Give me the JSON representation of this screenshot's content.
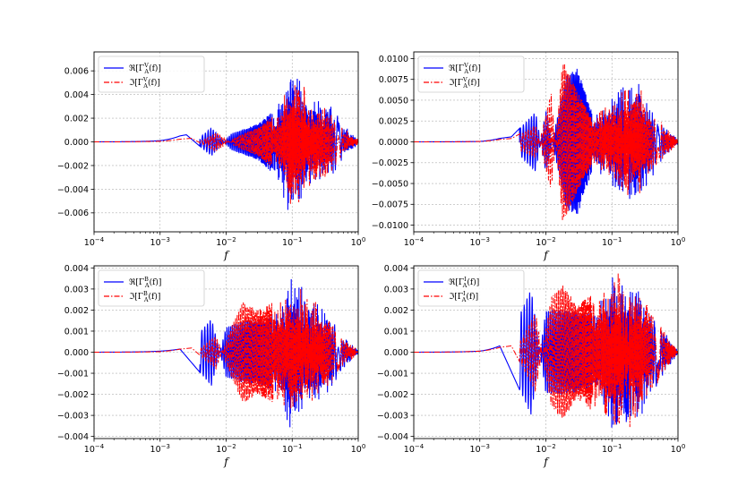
{
  "chart_data": [
    {
      "type": "line",
      "xscale": "log",
      "xlim": [
        0.0001,
        1
      ],
      "ylim": [
        -0.0076,
        0.0076
      ],
      "xlabel": "f",
      "xticks": [
        {
          "v": 0.0001,
          "b": "10",
          "e": "−4"
        },
        {
          "v": 0.001,
          "b": "10",
          "e": "−3"
        },
        {
          "v": 0.01,
          "b": "10",
          "e": "−2"
        },
        {
          "v": 0.1,
          "b": "10",
          "e": "−1"
        },
        {
          "v": 1,
          "b": "10",
          "e": "0"
        }
      ],
      "yticks": [
        -0.006,
        -0.004,
        -0.002,
        0.0,
        0.002,
        0.004,
        0.006
      ],
      "yticklabels": [
        "−0.006",
        "−0.004",
        "−0.002",
        "0.000",
        "0.002",
        "0.004",
        "0.006"
      ],
      "grid": true,
      "legend": "top-left",
      "series": [
        {
          "name": "ℜ[Γ_A^V(f)]",
          "label_main": "ℜ[Γ",
          "label_sup": "V",
          "label_sub": "A",
          "label_tail": "(f)]",
          "color": "#0000ff",
          "style": "solid",
          "envelope": [
            [
              0.0001,
              0
            ],
            [
              0.001,
              0.0002
            ],
            [
              0.0025,
              0.0006
            ],
            [
              0.006,
              -0.0012
            ],
            [
              0.012,
              0.0007
            ],
            [
              0.03,
              0.0015
            ],
            [
              0.06,
              0.003
            ],
            [
              0.09,
              0.0068
            ],
            [
              0.13,
              0.0055
            ],
            [
              0.2,
              0.004
            ],
            [
              0.35,
              0.0035
            ],
            [
              0.6,
              0.0015
            ],
            [
              1,
              0.0002
            ]
          ]
        },
        {
          "name": "ℑ[Γ_A^V(f)]",
          "label_main": "ℑ[Γ",
          "label_sup": "V",
          "label_sub": "A",
          "label_tail": "(f)]",
          "color": "#ff0000",
          "style": "dashdot",
          "envelope": [
            [
              0.0001,
              0
            ],
            [
              0.001,
              0.0001
            ],
            [
              0.003,
              0.0003
            ],
            [
              0.007,
              -0.0008
            ],
            [
              0.015,
              0.0005
            ],
            [
              0.03,
              0.0012
            ],
            [
              0.06,
              0.0025
            ],
            [
              0.1,
              0.006
            ],
            [
              0.14,
              0.005
            ],
            [
              0.2,
              0.004
            ],
            [
              0.35,
              0.003
            ],
            [
              0.6,
              0.0012
            ],
            [
              1,
              0.0002
            ]
          ]
        }
      ]
    },
    {
      "type": "line",
      "xscale": "log",
      "xlim": [
        0.0001,
        1
      ],
      "ylim": [
        -0.0108,
        0.0108
      ],
      "xlabel": "f",
      "xticks": [
        {
          "v": 0.0001,
          "b": "10",
          "e": "−4"
        },
        {
          "v": 0.001,
          "b": "10",
          "e": "−3"
        },
        {
          "v": 0.01,
          "b": "10",
          "e": "−2"
        },
        {
          "v": 0.1,
          "b": "10",
          "e": "−1"
        },
        {
          "v": 1,
          "b": "10",
          "e": "0"
        }
      ],
      "yticks": [
        -0.01,
        -0.0075,
        -0.005,
        -0.0025,
        0.0,
        0.0025,
        0.005,
        0.0075,
        0.01
      ],
      "yticklabels": [
        "−0.0100",
        "−0.0075",
        "−0.0050",
        "−0.0025",
        "0.0000",
        "0.0025",
        "0.0050",
        "0.0075",
        "0.0100"
      ],
      "grid": true,
      "legend": "top-left",
      "series": [
        {
          "name": "ℜ[Γ_A^V(f)]",
          "label_main": "ℜ[Γ",
          "label_sup": "V",
          "label_sub": "A",
          "label_tail": "(f)]",
          "color": "#0000ff",
          "style": "solid",
          "envelope": [
            [
              0.0001,
              0
            ],
            [
              0.001,
              0.0001
            ],
            [
              0.003,
              0.0006
            ],
            [
              0.007,
              0.0036
            ],
            [
              0.01,
              -0.0038
            ],
            [
              0.02,
              0.008
            ],
            [
              0.03,
              0.0088
            ],
            [
              0.05,
              0.0035
            ],
            [
              0.08,
              0.0045
            ],
            [
              0.15,
              0.007
            ],
            [
              0.25,
              0.0072
            ],
            [
              0.5,
              0.003
            ],
            [
              1,
              0.0003
            ]
          ]
        },
        {
          "name": "ℑ[Γ_A^V(f)]",
          "label_main": "ℑ[Γ",
          "label_sup": "V",
          "label_sub": "A",
          "label_tail": "(f)]",
          "color": "#ff0000",
          "style": "dashdot",
          "envelope": [
            [
              0.0001,
              0
            ],
            [
              0.001,
              0.0001
            ],
            [
              0.003,
              0.0004
            ],
            [
              0.007,
              0.002
            ],
            [
              0.012,
              -0.006
            ],
            [
              0.018,
              0.0098
            ],
            [
              0.03,
              0.006
            ],
            [
              0.05,
              0.0028
            ],
            [
              0.08,
              0.0045
            ],
            [
              0.15,
              0.0065
            ],
            [
              0.25,
              0.007
            ],
            [
              0.5,
              0.0028
            ],
            [
              1,
              0.0003
            ]
          ]
        }
      ]
    },
    {
      "type": "line",
      "xscale": "log",
      "xlim": [
        0.0001,
        1
      ],
      "ylim": [
        -0.0041,
        0.0041
      ],
      "xlabel": "f",
      "xticks": [
        {
          "v": 0.0001,
          "b": "10",
          "e": "−4"
        },
        {
          "v": 0.001,
          "b": "10",
          "e": "−3"
        },
        {
          "v": 0.01,
          "b": "10",
          "e": "−2"
        },
        {
          "v": 0.1,
          "b": "10",
          "e": "−1"
        },
        {
          "v": 1,
          "b": "10",
          "e": "0"
        }
      ],
      "yticks": [
        -0.004,
        -0.003,
        -0.002,
        -0.001,
        0.0,
        0.001,
        0.002,
        0.003,
        0.004
      ],
      "yticklabels": [
        "−0.004",
        "−0.003",
        "−0.002",
        "−0.001",
        "0.000",
        "0.001",
        "0.002",
        "0.003",
        "0.004"
      ],
      "grid": true,
      "legend": "top-left",
      "series": [
        {
          "name": "ℜ[Γ_A^B(f)]",
          "label_main": "ℜ[Γ",
          "label_sup": "B",
          "label_sub": "A",
          "label_tail": "(f)]",
          "color": "#0000ff",
          "style": "solid",
          "envelope": [
            [
              0.0001,
              0
            ],
            [
              0.001,
              0.0001
            ],
            [
              0.002,
              0.00015
            ],
            [
              0.006,
              -0.0016
            ],
            [
              0.01,
              0.0012
            ],
            [
              0.02,
              0.0015
            ],
            [
              0.04,
              0.0016
            ],
            [
              0.06,
              0.0022
            ],
            [
              0.09,
              0.0038
            ],
            [
              0.13,
              0.0033
            ],
            [
              0.2,
              0.0026
            ],
            [
              0.35,
              0.002
            ],
            [
              0.6,
              0.0008
            ],
            [
              1,
              0.0001
            ]
          ]
        },
        {
          "name": "ℑ[Γ_A^B(f)]",
          "label_main": "ℑ[Γ",
          "label_sup": "B",
          "label_sub": "A",
          "label_tail": "(f)]",
          "color": "#ff0000",
          "style": "dashdot",
          "envelope": [
            [
              0.0001,
              0
            ],
            [
              0.001,
              5e-05
            ],
            [
              0.003,
              0.0002
            ],
            [
              0.007,
              -0.0008
            ],
            [
              0.012,
              0.0012
            ],
            [
              0.018,
              0.0024
            ],
            [
              0.03,
              0.002
            ],
            [
              0.06,
              0.0025
            ],
            [
              0.1,
              0.0034
            ],
            [
              0.14,
              0.003
            ],
            [
              0.2,
              0.0026
            ],
            [
              0.35,
              0.0018
            ],
            [
              0.6,
              0.0007
            ],
            [
              1,
              0.0001
            ]
          ]
        }
      ]
    },
    {
      "type": "line",
      "xscale": "log",
      "xlim": [
        0.0001,
        1
      ],
      "ylim": [
        -0.0041,
        0.0041
      ],
      "xlabel": "f",
      "xticks": [
        {
          "v": 0.0001,
          "b": "10",
          "e": "−4"
        },
        {
          "v": 0.001,
          "b": "10",
          "e": "−3"
        },
        {
          "v": 0.01,
          "b": "10",
          "e": "−2"
        },
        {
          "v": 0.1,
          "b": "10",
          "e": "−1"
        },
        {
          "v": 1,
          "b": "10",
          "e": "0"
        }
      ],
      "yticks": [
        -0.004,
        -0.003,
        -0.002,
        -0.001,
        0.0,
        0.001,
        0.002,
        0.003,
        0.004
      ],
      "yticklabels": [
        "−0.004",
        "−0.003",
        "−0.002",
        "−0.001",
        "0.000",
        "0.001",
        "0.002",
        "0.003",
        "0.004"
      ],
      "grid": true,
      "legend": "top-left",
      "series": [
        {
          "name": "ℜ[Γ_A^I(f)]",
          "label_main": "ℜ[Γ",
          "label_sup": "I",
          "label_sub": "A",
          "label_tail": "(f)]",
          "color": "#0000ff",
          "style": "solid",
          "envelope": [
            [
              0.0001,
              0
            ],
            [
              0.001,
              0.0001
            ],
            [
              0.002,
              0.0003
            ],
            [
              0.006,
              -0.003
            ],
            [
              0.01,
              0.002
            ],
            [
              0.02,
              0.002
            ],
            [
              0.04,
              0.0018
            ],
            [
              0.07,
              0.0025
            ],
            [
              0.1,
              0.0037
            ],
            [
              0.15,
              0.0038
            ],
            [
              0.25,
              0.0035
            ],
            [
              0.4,
              0.002
            ],
            [
              0.7,
              0.0008
            ],
            [
              1,
              0.0001
            ]
          ]
        },
        {
          "name": "ℑ[Γ_A^I(f)]",
          "label_main": "ℑ[Γ",
          "label_sup": "I",
          "label_sub": "A",
          "label_tail": "(f)]",
          "color": "#ff0000",
          "style": "dashdot",
          "envelope": [
            [
              0.0001,
              0
            ],
            [
              0.001,
              0.0001
            ],
            [
              0.003,
              0.0003
            ],
            [
              0.007,
              -0.0019
            ],
            [
              0.012,
              0.0026
            ],
            [
              0.018,
              0.0032
            ],
            [
              0.03,
              0.0022
            ],
            [
              0.06,
              0.003
            ],
            [
              0.1,
              0.0036
            ],
            [
              0.15,
              0.004
            ],
            [
              0.25,
              0.0034
            ],
            [
              0.4,
              0.002
            ],
            [
              0.7,
              0.0008
            ],
            [
              1,
              0.0001
            ]
          ]
        }
      ]
    }
  ]
}
